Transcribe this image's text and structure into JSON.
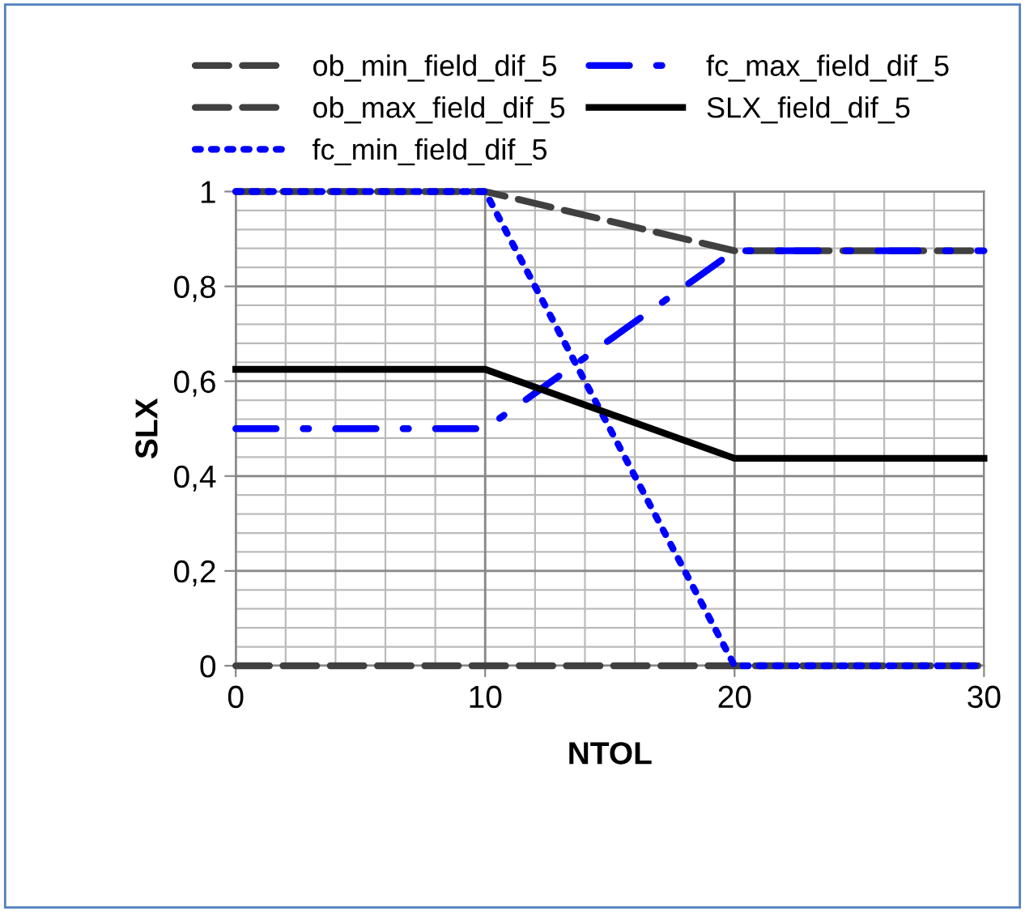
{
  "chart_data": {
    "type": "line",
    "xlabel": "NTOL",
    "ylabel": "SLX",
    "x": [
      0,
      10,
      20,
      30
    ],
    "series": [
      {
        "name": "ob_min_field_dif_5",
        "color": "#404040",
        "line_style": "dashed",
        "values": [
          0,
          0,
          0,
          0
        ]
      },
      {
        "name": "ob_max_field_dif_5",
        "color": "#404040",
        "line_style": "dashed",
        "values": [
          1,
          1,
          0.875,
          0.875
        ]
      },
      {
        "name": "fc_min_field_dif_5",
        "color": "#0000ff",
        "line_style": "dotted",
        "values": [
          1,
          1,
          0,
          0
        ]
      },
      {
        "name": "fc_max_field_dif_5",
        "color": "#0000ff",
        "line_style": "dashdot",
        "values": [
          0.5,
          0.5,
          0.875,
          0.875
        ]
      },
      {
        "name": "SLX_field_dif_5",
        "color": "#000000",
        "line_style": "solid",
        "values": [
          0.625,
          0.625,
          0.4375,
          0.4375
        ]
      }
    ],
    "xlim": [
      0,
      30
    ],
    "xticks": [
      0,
      10,
      20,
      30
    ],
    "ylim": [
      0,
      1
    ],
    "yticks": [
      {
        "value": 0,
        "label": "0"
      },
      {
        "value": 0.2,
        "label": "0,2"
      },
      {
        "value": 0.4,
        "label": "0,4"
      },
      {
        "value": 0.6,
        "label": "0,6"
      },
      {
        "value": 0.8,
        "label": "0,8"
      },
      {
        "value": 1,
        "label": "1"
      }
    ],
    "grid": true,
    "legend": "top",
    "marker": "none"
  }
}
